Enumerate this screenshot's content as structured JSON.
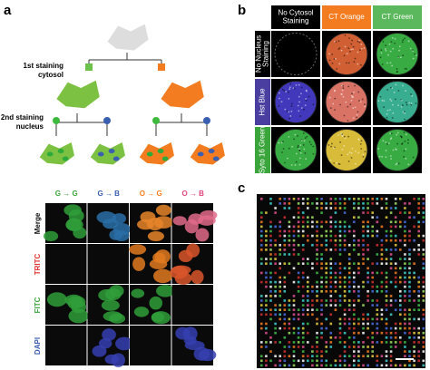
{
  "panel_a": {
    "label": "a",
    "first_staining": [
      "1st staining",
      "cytosol"
    ],
    "second_staining": [
      "2nd staining",
      "nucleus"
    ],
    "columns": [
      "G → G",
      "G → B",
      "O → G",
      "O → B"
    ],
    "rows": [
      "Merge",
      "TRITC",
      "FITC",
      "DAPI"
    ]
  },
  "panel_b": {
    "label": "b",
    "columns": [
      [
        "No Cytosol",
        "Staining"
      ],
      [
        "CT Orange"
      ],
      [
        "CT Green"
      ]
    ],
    "rows": [
      [
        "No Nucleus",
        "Staining"
      ],
      [
        "Hst Blue"
      ],
      [
        "Syto 16 Green"
      ]
    ]
  },
  "panel_c": {
    "label": "c"
  }
}
